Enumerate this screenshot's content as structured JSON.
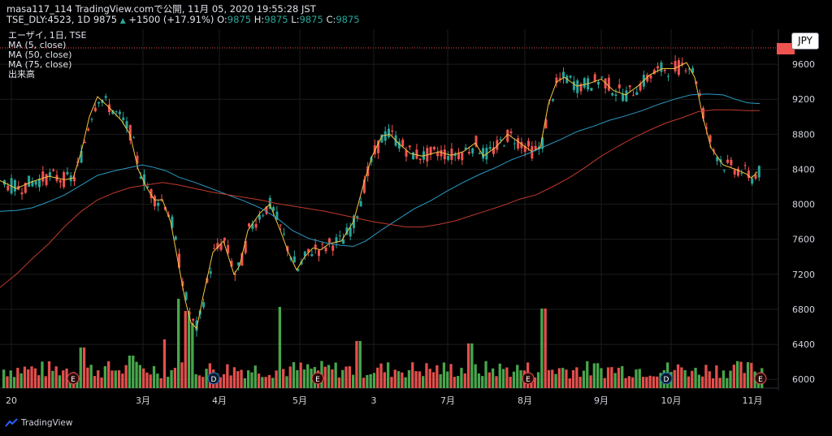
{
  "header": {
    "line1": "masa117_114 TradingView.comで公開, 11月 05, 2020 19:55:28 JST",
    "symbol": "TSE_DLY:4523, 1D",
    "last": "9875",
    "change_arrow": "▲",
    "change": "+1500 (+17.91%)",
    "o_label": "O:",
    "o_value": "9875",
    "h_label": "H:",
    "h_value": "9875",
    "l_label": "L:",
    "l_value": "9875",
    "c_label": "C:",
    "c_value": "9875"
  },
  "legend": {
    "title": "エーザイ, 1日, TSE",
    "ma5": "MA (5, close)",
    "ma50": "MA (50, close)",
    "ma75": "MA (75, close)",
    "volume": "出来高"
  },
  "currency_button": "JPY",
  "branding": "TradingView",
  "colors": {
    "up": "#26a69a",
    "down": "#ef5350",
    "vol_up": "#4caf50",
    "vol_down": "#ef5350",
    "ma5": "#f5c542",
    "ma50": "#2b9bc4",
    "ma75": "#c0392b",
    "background": "#000000",
    "grid": "#1c1c1c"
  },
  "chart_data": {
    "type": "candlestick",
    "y_axis": {
      "position": "right",
      "min": 5900,
      "max": 10000,
      "ticks": [
        6000,
        6400,
        6800,
        7200,
        7600,
        8000,
        8400,
        8800,
        9200,
        9600
      ]
    },
    "x_axis_labels": [
      "20",
      "3月",
      "4月",
      "5月",
      "3",
      "7月",
      "8月",
      "9月",
      "10月",
      "11月"
    ],
    "events": [
      "E",
      "D",
      "E",
      "E",
      "D",
      "E"
    ],
    "series": [
      {
        "name": "MA (5, close)",
        "points": [
          [
            0,
            8270
          ],
          [
            20,
            8180
          ],
          [
            40,
            8260
          ],
          [
            60,
            8320
          ],
          [
            80,
            8280
          ],
          [
            90,
            8300
          ],
          [
            100,
            8600
          ],
          [
            110,
            9000
          ],
          [
            120,
            9230
          ],
          [
            135,
            9100
          ],
          [
            150,
            8950
          ],
          [
            160,
            8800
          ],
          [
            170,
            8400
          ],
          [
            180,
            8200
          ],
          [
            190,
            8050
          ],
          [
            200,
            8050
          ],
          [
            210,
            7800
          ],
          [
            220,
            7300
          ],
          [
            228,
            6900
          ],
          [
            235,
            6650
          ],
          [
            242,
            6580
          ],
          [
            250,
            6950
          ],
          [
            262,
            7450
          ],
          [
            275,
            7580
          ],
          [
            288,
            7200
          ],
          [
            295,
            7300
          ],
          [
            305,
            7700
          ],
          [
            320,
            7900
          ],
          [
            332,
            8000
          ],
          [
            345,
            7700
          ],
          [
            355,
            7450
          ],
          [
            365,
            7250
          ],
          [
            375,
            7400
          ],
          [
            385,
            7500
          ],
          [
            395,
            7480
          ],
          [
            405,
            7550
          ],
          [
            420,
            7580
          ],
          [
            435,
            7800
          ],
          [
            448,
            8250
          ],
          [
            458,
            8550
          ],
          [
            470,
            8780
          ],
          [
            480,
            8800
          ],
          [
            490,
            8700
          ],
          [
            505,
            8580
          ],
          [
            520,
            8550
          ],
          [
            540,
            8600
          ],
          [
            555,
            8560
          ],
          [
            570,
            8600
          ],
          [
            585,
            8700
          ],
          [
            595,
            8550
          ],
          [
            610,
            8650
          ],
          [
            625,
            8800
          ],
          [
            640,
            8700
          ],
          [
            655,
            8600
          ],
          [
            665,
            8650
          ],
          [
            675,
            9150
          ],
          [
            685,
            9400
          ],
          [
            695,
            9450
          ],
          [
            710,
            9350
          ],
          [
            725,
            9380
          ],
          [
            740,
            9430
          ],
          [
            755,
            9300
          ],
          [
            770,
            9250
          ],
          [
            785,
            9350
          ],
          [
            800,
            9480
          ],
          [
            815,
            9550
          ],
          [
            830,
            9550
          ],
          [
            845,
            9620
          ],
          [
            855,
            9450
          ],
          [
            865,
            9000
          ],
          [
            875,
            8650
          ],
          [
            890,
            8450
          ],
          [
            905,
            8400
          ],
          [
            918,
            8350
          ],
          [
            925,
            8300
          ],
          [
            932,
            8370
          ]
        ]
      },
      {
        "name": "MA (50, close)",
        "points": [
          [
            0,
            7920
          ],
          [
            20,
            7930
          ],
          [
            40,
            7960
          ],
          [
            60,
            8030
          ],
          [
            80,
            8110
          ],
          [
            100,
            8220
          ],
          [
            120,
            8330
          ],
          [
            140,
            8380
          ],
          [
            160,
            8420
          ],
          [
            175,
            8450
          ],
          [
            190,
            8420
          ],
          [
            205,
            8380
          ],
          [
            220,
            8310
          ],
          [
            240,
            8250
          ],
          [
            260,
            8180
          ],
          [
            280,
            8110
          ],
          [
            300,
            8040
          ],
          [
            320,
            7960
          ],
          [
            340,
            7850
          ],
          [
            360,
            7700
          ],
          [
            380,
            7610
          ],
          [
            400,
            7560
          ],
          [
            420,
            7530
          ],
          [
            435,
            7520
          ],
          [
            450,
            7580
          ],
          [
            470,
            7710
          ],
          [
            490,
            7830
          ],
          [
            510,
            7950
          ],
          [
            530,
            8040
          ],
          [
            550,
            8150
          ],
          [
            570,
            8250
          ],
          [
            590,
            8340
          ],
          [
            610,
            8420
          ],
          [
            630,
            8510
          ],
          [
            650,
            8580
          ],
          [
            670,
            8660
          ],
          [
            690,
            8740
          ],
          [
            710,
            8830
          ],
          [
            730,
            8890
          ],
          [
            750,
            8960
          ],
          [
            770,
            9010
          ],
          [
            790,
            9070
          ],
          [
            810,
            9140
          ],
          [
            830,
            9200
          ],
          [
            850,
            9250
          ],
          [
            870,
            9260
          ],
          [
            890,
            9250
          ],
          [
            905,
            9200
          ],
          [
            920,
            9160
          ],
          [
            935,
            9150
          ]
        ]
      },
      {
        "name": "MA (75, close)",
        "points": [
          [
            0,
            7050
          ],
          [
            20,
            7200
          ],
          [
            40,
            7380
          ],
          [
            60,
            7550
          ],
          [
            80,
            7750
          ],
          [
            100,
            7920
          ],
          [
            120,
            8050
          ],
          [
            140,
            8130
          ],
          [
            160,
            8190
          ],
          [
            180,
            8220
          ],
          [
            200,
            8250
          ],
          [
            220,
            8220
          ],
          [
            240,
            8180
          ],
          [
            260,
            8140
          ],
          [
            280,
            8110
          ],
          [
            300,
            8080
          ],
          [
            320,
            8050
          ],
          [
            340,
            8010
          ],
          [
            360,
            7980
          ],
          [
            380,
            7950
          ],
          [
            400,
            7920
          ],
          [
            420,
            7880
          ],
          [
            440,
            7840
          ],
          [
            460,
            7800
          ],
          [
            480,
            7770
          ],
          [
            500,
            7740
          ],
          [
            520,
            7740
          ],
          [
            540,
            7770
          ],
          [
            560,
            7810
          ],
          [
            580,
            7870
          ],
          [
            600,
            7930
          ],
          [
            620,
            7990
          ],
          [
            640,
            8060
          ],
          [
            660,
            8110
          ],
          [
            680,
            8200
          ],
          [
            700,
            8300
          ],
          [
            720,
            8420
          ],
          [
            740,
            8550
          ],
          [
            760,
            8660
          ],
          [
            780,
            8760
          ],
          [
            800,
            8850
          ],
          [
            820,
            8930
          ],
          [
            840,
            8990
          ],
          [
            860,
            9060
          ],
          [
            880,
            9080
          ],
          [
            900,
            9080
          ],
          [
            920,
            9070
          ],
          [
            935,
            9070
          ]
        ]
      }
    ]
  }
}
